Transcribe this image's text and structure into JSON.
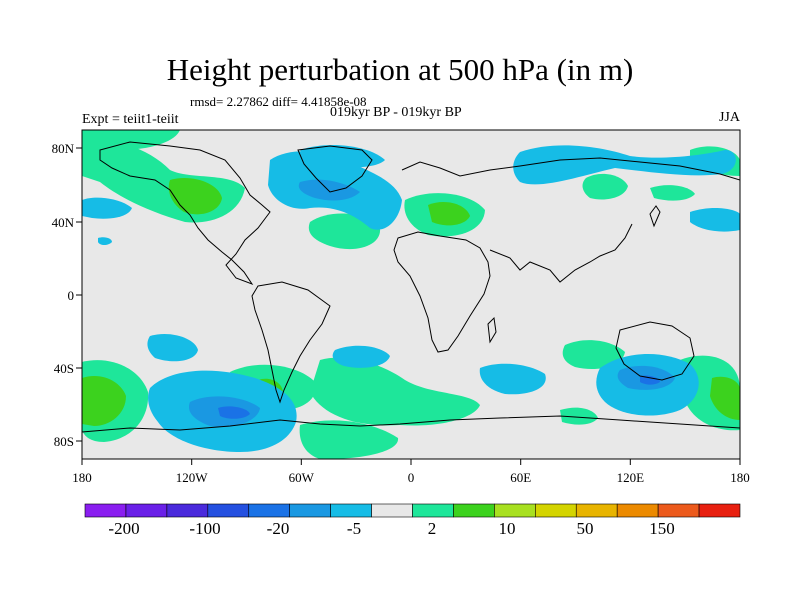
{
  "title": "Height perturbation at 500 hPa (in m)",
  "stats": "rmsd= 2.27862 diff= 4.41858e-08",
  "experiment": "Expt = teiit1-teiit",
  "period": "019kyr BP - 019kyr BP",
  "season": "JJA",
  "lat_labels": [
    "80N",
    "40N",
    "0",
    "40S",
    "80S"
  ],
  "lon_labels": [
    "180",
    "120W",
    "60W",
    "0",
    "60E",
    "120E",
    "180"
  ],
  "colorbar": {
    "colors": [
      "#8a1ef0",
      "#6a20e8",
      "#4a2adc",
      "#2450e0",
      "#1a72e6",
      "#1a98e2",
      "#16bce6",
      "#e8e8e8",
      "#1ee69a",
      "#3cd21e",
      "#a8e020",
      "#d4d400",
      "#e8b400",
      "#ec8a00",
      "#ec5a1c",
      "#e82010"
    ],
    "labels": [
      "-200",
      "-100",
      "-20",
      "-5",
      "2",
      "10",
      "50",
      "150"
    ]
  },
  "colors": {
    "neutral": "#e8e8e8",
    "pos1": "#1ee69a",
    "pos2": "#3cd21e",
    "neg1": "#16bce6",
    "neg2": "#1a98e2"
  }
}
